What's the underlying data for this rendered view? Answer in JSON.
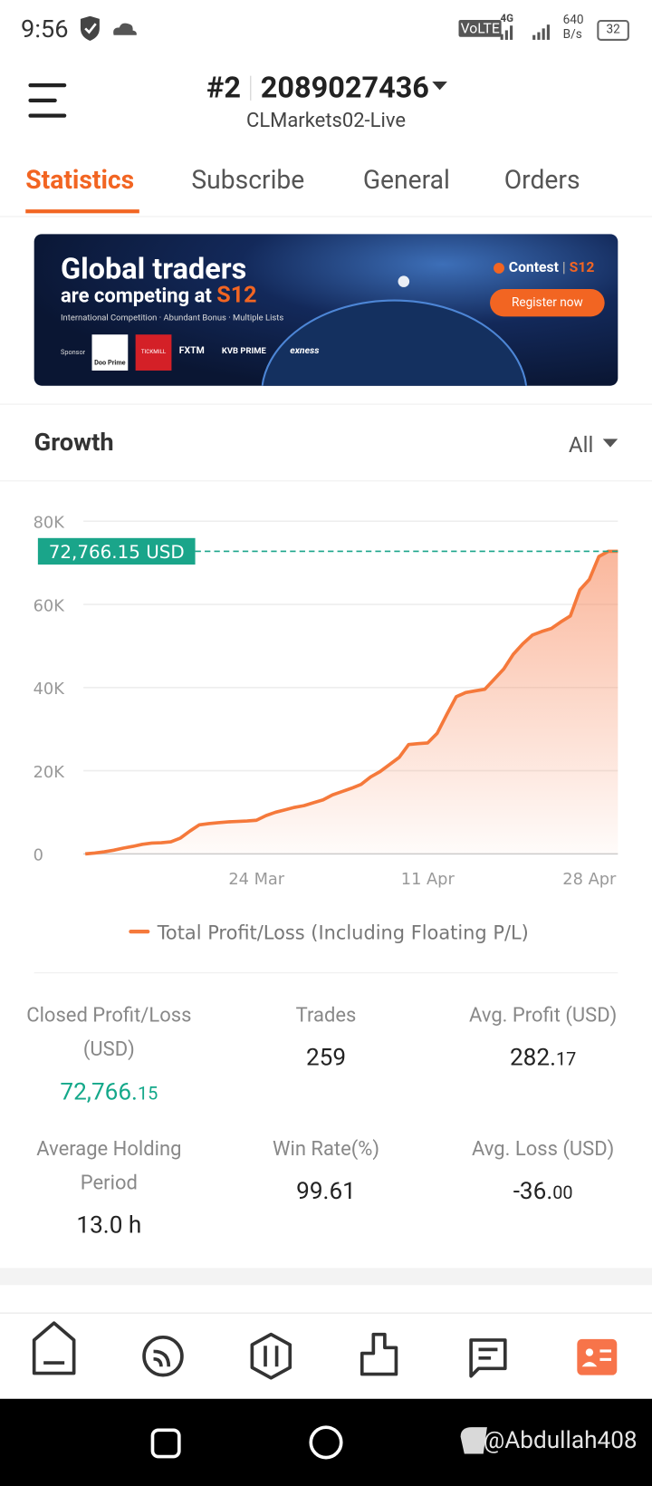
{
  "status_bar": {
    "time": "9:56",
    "network": "VoLTE",
    "signal": "4G",
    "speed": "640",
    "speed_unit": "B/s",
    "battery": "32"
  },
  "header": {
    "account_index": "#2",
    "account_number": "2089027436",
    "server": "CLMarkets02-Live"
  },
  "tabs": [
    "Statistics",
    "Subscribe",
    "General",
    "Orders"
  ],
  "banner": {
    "title": "Global traders",
    "subtitle_prefix": "are competing at",
    "subtitle_brand": "S12",
    "tagline": "International Competition · Abundant Bonus · Multiple Lists",
    "sponsor": "Sponsor",
    "sponsors": [
      "Doo Prime",
      "TICKMILL",
      "FXTM",
      "KVB PRIME",
      "exness"
    ],
    "contest": "Contest",
    "contest_brand": "S12",
    "button": "Register now"
  },
  "growth": {
    "title": "Growth",
    "filter": "All"
  },
  "chart_data": {
    "type": "line",
    "series": [
      {
        "name": "Total Profit/Loss (Including Floating P/L)",
        "color": "#f5793b",
        "values": [
          0,
          200,
          500,
          900,
          1400,
          1800,
          2300,
          2600,
          2700,
          2900,
          3800,
          5500,
          7000,
          7300,
          7500,
          7700,
          7800,
          7900,
          8100,
          9200,
          10000,
          10600,
          11200,
          11600,
          12300,
          13000,
          14200,
          15000,
          15800,
          16700,
          18500,
          19800,
          21500,
          23200,
          26300,
          26500,
          26700,
          29000,
          33500,
          37800,
          38800,
          39200,
          39600,
          42000,
          44500,
          48000,
          50500,
          52600,
          53500,
          54200,
          55800,
          57200,
          63500,
          66000,
          71500,
          72766.15,
          72766.15
        ]
      }
    ],
    "ylim": [
      0,
      80000
    ],
    "yticks": [
      0,
      {
        "value": 20000,
        "label": "20K"
      },
      {
        "value": 40000,
        "label": "40K"
      },
      {
        "value": 60000,
        "label": "60K"
      },
      {
        "value": 80000,
        "label": "80K"
      }
    ],
    "xticks": [
      {
        "value": 18,
        "label": "24 Mar"
      },
      {
        "value": 36,
        "label": "11 Apr"
      },
      {
        "value": 53,
        "label": "28 Apr"
      }
    ],
    "annotation": {
      "value": 72766.15,
      "label": "72,766.15 USD",
      "color": "#1aa58a"
    },
    "grid": true
  },
  "stats": [
    {
      "label": "Closed Profit/Loss",
      "label2": "(USD)",
      "value": "72,766.",
      "decimals": "15"
    },
    {
      "label": "Trades",
      "value": "259"
    },
    {
      "label": "Avg. Profit (USD)",
      "value": "282.",
      "decimals": "17"
    },
    {
      "label": "Average Holding",
      "label2": "Period",
      "value": "13.0 h"
    },
    {
      "label": "Win Rate(%)",
      "value": "99.61"
    },
    {
      "label": "Avg. Loss (USD)",
      "value": "-36.",
      "decimals": "00"
    }
  ],
  "watermark": "@Abdullah408"
}
